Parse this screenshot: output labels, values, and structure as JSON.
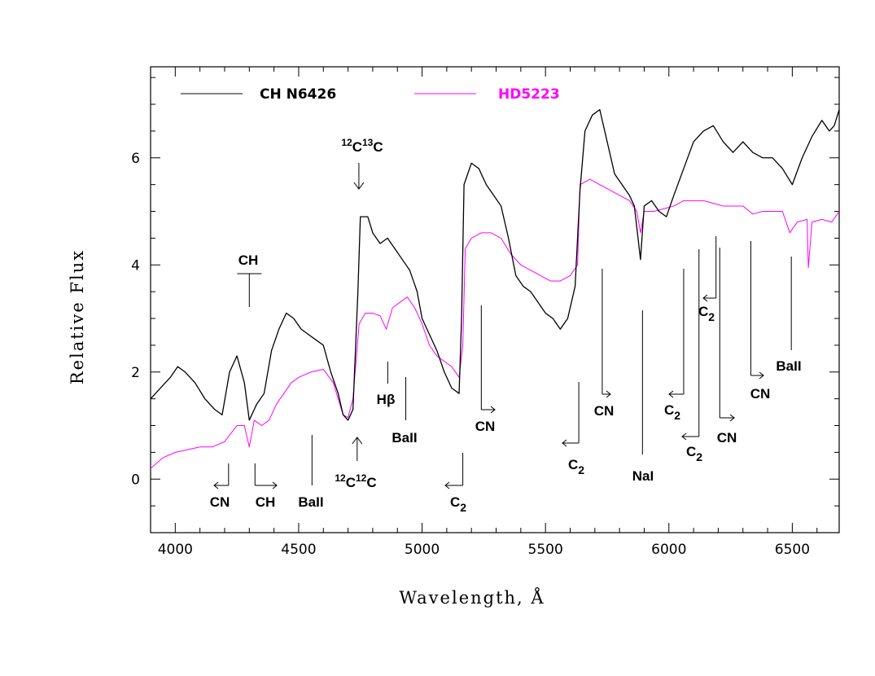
{
  "chart_data": {
    "type": "line",
    "xlabel": "Wavelength, Å",
    "ylabel": "Relative Flux",
    "xlim": [
      3900,
      6690
    ],
    "ylim": [
      -1,
      7.7
    ],
    "xticks": [
      4000,
      4500,
      5000,
      5500,
      6000,
      6500
    ],
    "yticks": [
      0,
      2,
      4,
      6
    ],
    "legend_position": "top-left",
    "series": [
      {
        "name": "CH N6426",
        "color": "#000000",
        "points": [
          [
            3900,
            1.5
          ],
          [
            3940,
            1.7
          ],
          [
            3980,
            1.9
          ],
          [
            4010,
            2.1
          ],
          [
            4040,
            2.0
          ],
          [
            4080,
            1.8
          ],
          [
            4120,
            1.5
          ],
          [
            4160,
            1.3
          ],
          [
            4190,
            1.2
          ],
          [
            4220,
            2.0
          ],
          [
            4250,
            2.3
          ],
          [
            4280,
            1.8
          ],
          [
            4300,
            1.1
          ],
          [
            4330,
            1.4
          ],
          [
            4360,
            1.6
          ],
          [
            4390,
            2.4
          ],
          [
            4420,
            2.8
          ],
          [
            4450,
            3.1
          ],
          [
            4480,
            3.0
          ],
          [
            4510,
            2.8
          ],
          [
            4540,
            2.7
          ],
          [
            4570,
            2.6
          ],
          [
            4600,
            2.5
          ],
          [
            4630,
            2.0
          ],
          [
            4660,
            1.6
          ],
          [
            4680,
            1.2
          ],
          [
            4700,
            1.1
          ],
          [
            4720,
            1.3
          ],
          [
            4740,
            3.5
          ],
          [
            4750,
            4.9
          ],
          [
            4780,
            4.9
          ],
          [
            4800,
            4.6
          ],
          [
            4830,
            4.4
          ],
          [
            4860,
            4.5
          ],
          [
            4890,
            4.3
          ],
          [
            4920,
            4.1
          ],
          [
            4950,
            3.9
          ],
          [
            4980,
            3.5
          ],
          [
            5000,
            3.0
          ],
          [
            5030,
            2.7
          ],
          [
            5060,
            2.4
          ],
          [
            5090,
            2.0
          ],
          [
            5120,
            1.7
          ],
          [
            5150,
            1.6
          ],
          [
            5160,
            3.0
          ],
          [
            5170,
            5.5
          ],
          [
            5200,
            5.9
          ],
          [
            5230,
            5.8
          ],
          [
            5260,
            5.5
          ],
          [
            5290,
            5.3
          ],
          [
            5320,
            5.1
          ],
          [
            5350,
            4.5
          ],
          [
            5380,
            3.8
          ],
          [
            5410,
            3.6
          ],
          [
            5440,
            3.5
          ],
          [
            5470,
            3.3
          ],
          [
            5500,
            3.1
          ],
          [
            5530,
            3.0
          ],
          [
            5560,
            2.8
          ],
          [
            5590,
            3.0
          ],
          [
            5620,
            3.6
          ],
          [
            5640,
            5.4
          ],
          [
            5660,
            6.5
          ],
          [
            5690,
            6.8
          ],
          [
            5720,
            6.9
          ],
          [
            5750,
            6.3
          ],
          [
            5780,
            5.7
          ],
          [
            5810,
            5.5
          ],
          [
            5840,
            5.3
          ],
          [
            5860,
            5.1
          ],
          [
            5885,
            4.1
          ],
          [
            5900,
            5.1
          ],
          [
            5930,
            5.2
          ],
          [
            5960,
            5.0
          ],
          [
            5990,
            4.9
          ],
          [
            6020,
            5.3
          ],
          [
            6060,
            5.8
          ],
          [
            6100,
            6.3
          ],
          [
            6140,
            6.5
          ],
          [
            6180,
            6.6
          ],
          [
            6220,
            6.3
          ],
          [
            6260,
            6.1
          ],
          [
            6300,
            6.3
          ],
          [
            6340,
            6.1
          ],
          [
            6380,
            6.0
          ],
          [
            6420,
            6.0
          ],
          [
            6460,
            5.8
          ],
          [
            6500,
            5.5
          ],
          [
            6540,
            6.0
          ],
          [
            6580,
            6.4
          ],
          [
            6620,
            6.7
          ],
          [
            6650,
            6.5
          ],
          [
            6670,
            6.6
          ],
          [
            6690,
            6.9
          ]
        ]
      },
      {
        "name": "HD5223",
        "color": "#ff00ff",
        "points": [
          [
            3900,
            0.2
          ],
          [
            3950,
            0.4
          ],
          [
            4000,
            0.5
          ],
          [
            4050,
            0.55
          ],
          [
            4100,
            0.6
          ],
          [
            4150,
            0.6
          ],
          [
            4200,
            0.7
          ],
          [
            4250,
            1.0
          ],
          [
            4280,
            1.0
          ],
          [
            4300,
            0.6
          ],
          [
            4320,
            1.1
          ],
          [
            4350,
            1.0
          ],
          [
            4380,
            1.1
          ],
          [
            4410,
            1.4
          ],
          [
            4440,
            1.6
          ],
          [
            4470,
            1.8
          ],
          [
            4500,
            1.9
          ],
          [
            4550,
            2.0
          ],
          [
            4600,
            2.05
          ],
          [
            4640,
            1.8
          ],
          [
            4680,
            1.2
          ],
          [
            4700,
            1.15
          ],
          [
            4720,
            1.5
          ],
          [
            4745,
            2.9
          ],
          [
            4770,
            3.1
          ],
          [
            4800,
            3.1
          ],
          [
            4830,
            3.05
          ],
          [
            4855,
            2.8
          ],
          [
            4880,
            3.2
          ],
          [
            4910,
            3.3
          ],
          [
            4940,
            3.4
          ],
          [
            4970,
            3.2
          ],
          [
            5000,
            2.9
          ],
          [
            5030,
            2.5
          ],
          [
            5060,
            2.3
          ],
          [
            5090,
            2.2
          ],
          [
            5120,
            2.1
          ],
          [
            5150,
            1.9
          ],
          [
            5165,
            2.5
          ],
          [
            5175,
            4.3
          ],
          [
            5200,
            4.5
          ],
          [
            5240,
            4.6
          ],
          [
            5280,
            4.6
          ],
          [
            5320,
            4.5
          ],
          [
            5360,
            4.2
          ],
          [
            5400,
            4.0
          ],
          [
            5440,
            3.9
          ],
          [
            5480,
            3.8
          ],
          [
            5520,
            3.7
          ],
          [
            5560,
            3.7
          ],
          [
            5600,
            3.8
          ],
          [
            5630,
            4.0
          ],
          [
            5640,
            5.5
          ],
          [
            5680,
            5.6
          ],
          [
            5720,
            5.5
          ],
          [
            5760,
            5.4
          ],
          [
            5800,
            5.3
          ],
          [
            5840,
            5.2
          ],
          [
            5870,
            5.0
          ],
          [
            5885,
            4.6
          ],
          [
            5900,
            5.0
          ],
          [
            5940,
            5.0
          ],
          [
            5980,
            5.05
          ],
          [
            6020,
            5.1
          ],
          [
            6060,
            5.2
          ],
          [
            6100,
            5.2
          ],
          [
            6140,
            5.2
          ],
          [
            6180,
            5.15
          ],
          [
            6220,
            5.1
          ],
          [
            6260,
            5.1
          ],
          [
            6300,
            5.1
          ],
          [
            6340,
            4.95
          ],
          [
            6380,
            5.0
          ],
          [
            6420,
            5.0
          ],
          [
            6460,
            5.0
          ],
          [
            6490,
            4.6
          ],
          [
            6520,
            4.8
          ],
          [
            6560,
            4.85
          ],
          [
            6565,
            3.95
          ],
          [
            6580,
            4.8
          ],
          [
            6620,
            4.85
          ],
          [
            6660,
            4.8
          ],
          [
            6690,
            5.0
          ]
        ]
      }
    ],
    "annotations": [
      {
        "label": "CH",
        "label_sub": "",
        "wl": 4300
      },
      {
        "label": "CN",
        "label_sub": "",
        "wl": 4216
      },
      {
        "label": "CH",
        "label_sub": "",
        "wl": 4323
      },
      {
        "label": "BaII",
        "label_sub": "",
        "wl": 4554
      },
      {
        "label": "Hβ",
        "label_sub": "",
        "wl": 4861
      },
      {
        "label": "BaII",
        "label_sub": "",
        "wl": 4934
      },
      {
        "label": "C",
        "label_sub": "2",
        "wl": 5165
      },
      {
        "label": "CN",
        "label_sub": "",
        "wl": 5240
      },
      {
        "label": "C",
        "label_sub": "2",
        "wl": 5635
      },
      {
        "label": "CN",
        "label_sub": "",
        "wl": 5730
      },
      {
        "label": "NaI",
        "label_sub": "",
        "wl": 5893
      },
      {
        "label": "C",
        "label_sub": "2",
        "wl": 6060
      },
      {
        "label": "C",
        "label_sub": "2",
        "wl": 6122
      },
      {
        "label": "C",
        "label_sub": "2",
        "wl": 6191
      },
      {
        "label": "CN",
        "label_sub": "",
        "wl": 6206
      },
      {
        "label": "CN",
        "label_sub": "",
        "wl": 6332
      },
      {
        "label": "BaII",
        "label_sub": "",
        "wl": 6496
      }
    ],
    "isotope_labels": [
      {
        "mass1": "12",
        "el1": "C",
        "mass2": "13",
        "el2": "C",
        "wl": 4744
      },
      {
        "mass1": "12",
        "el1": "C",
        "mass2": "12",
        "el2": "C",
        "wl": 4737
      }
    ]
  }
}
